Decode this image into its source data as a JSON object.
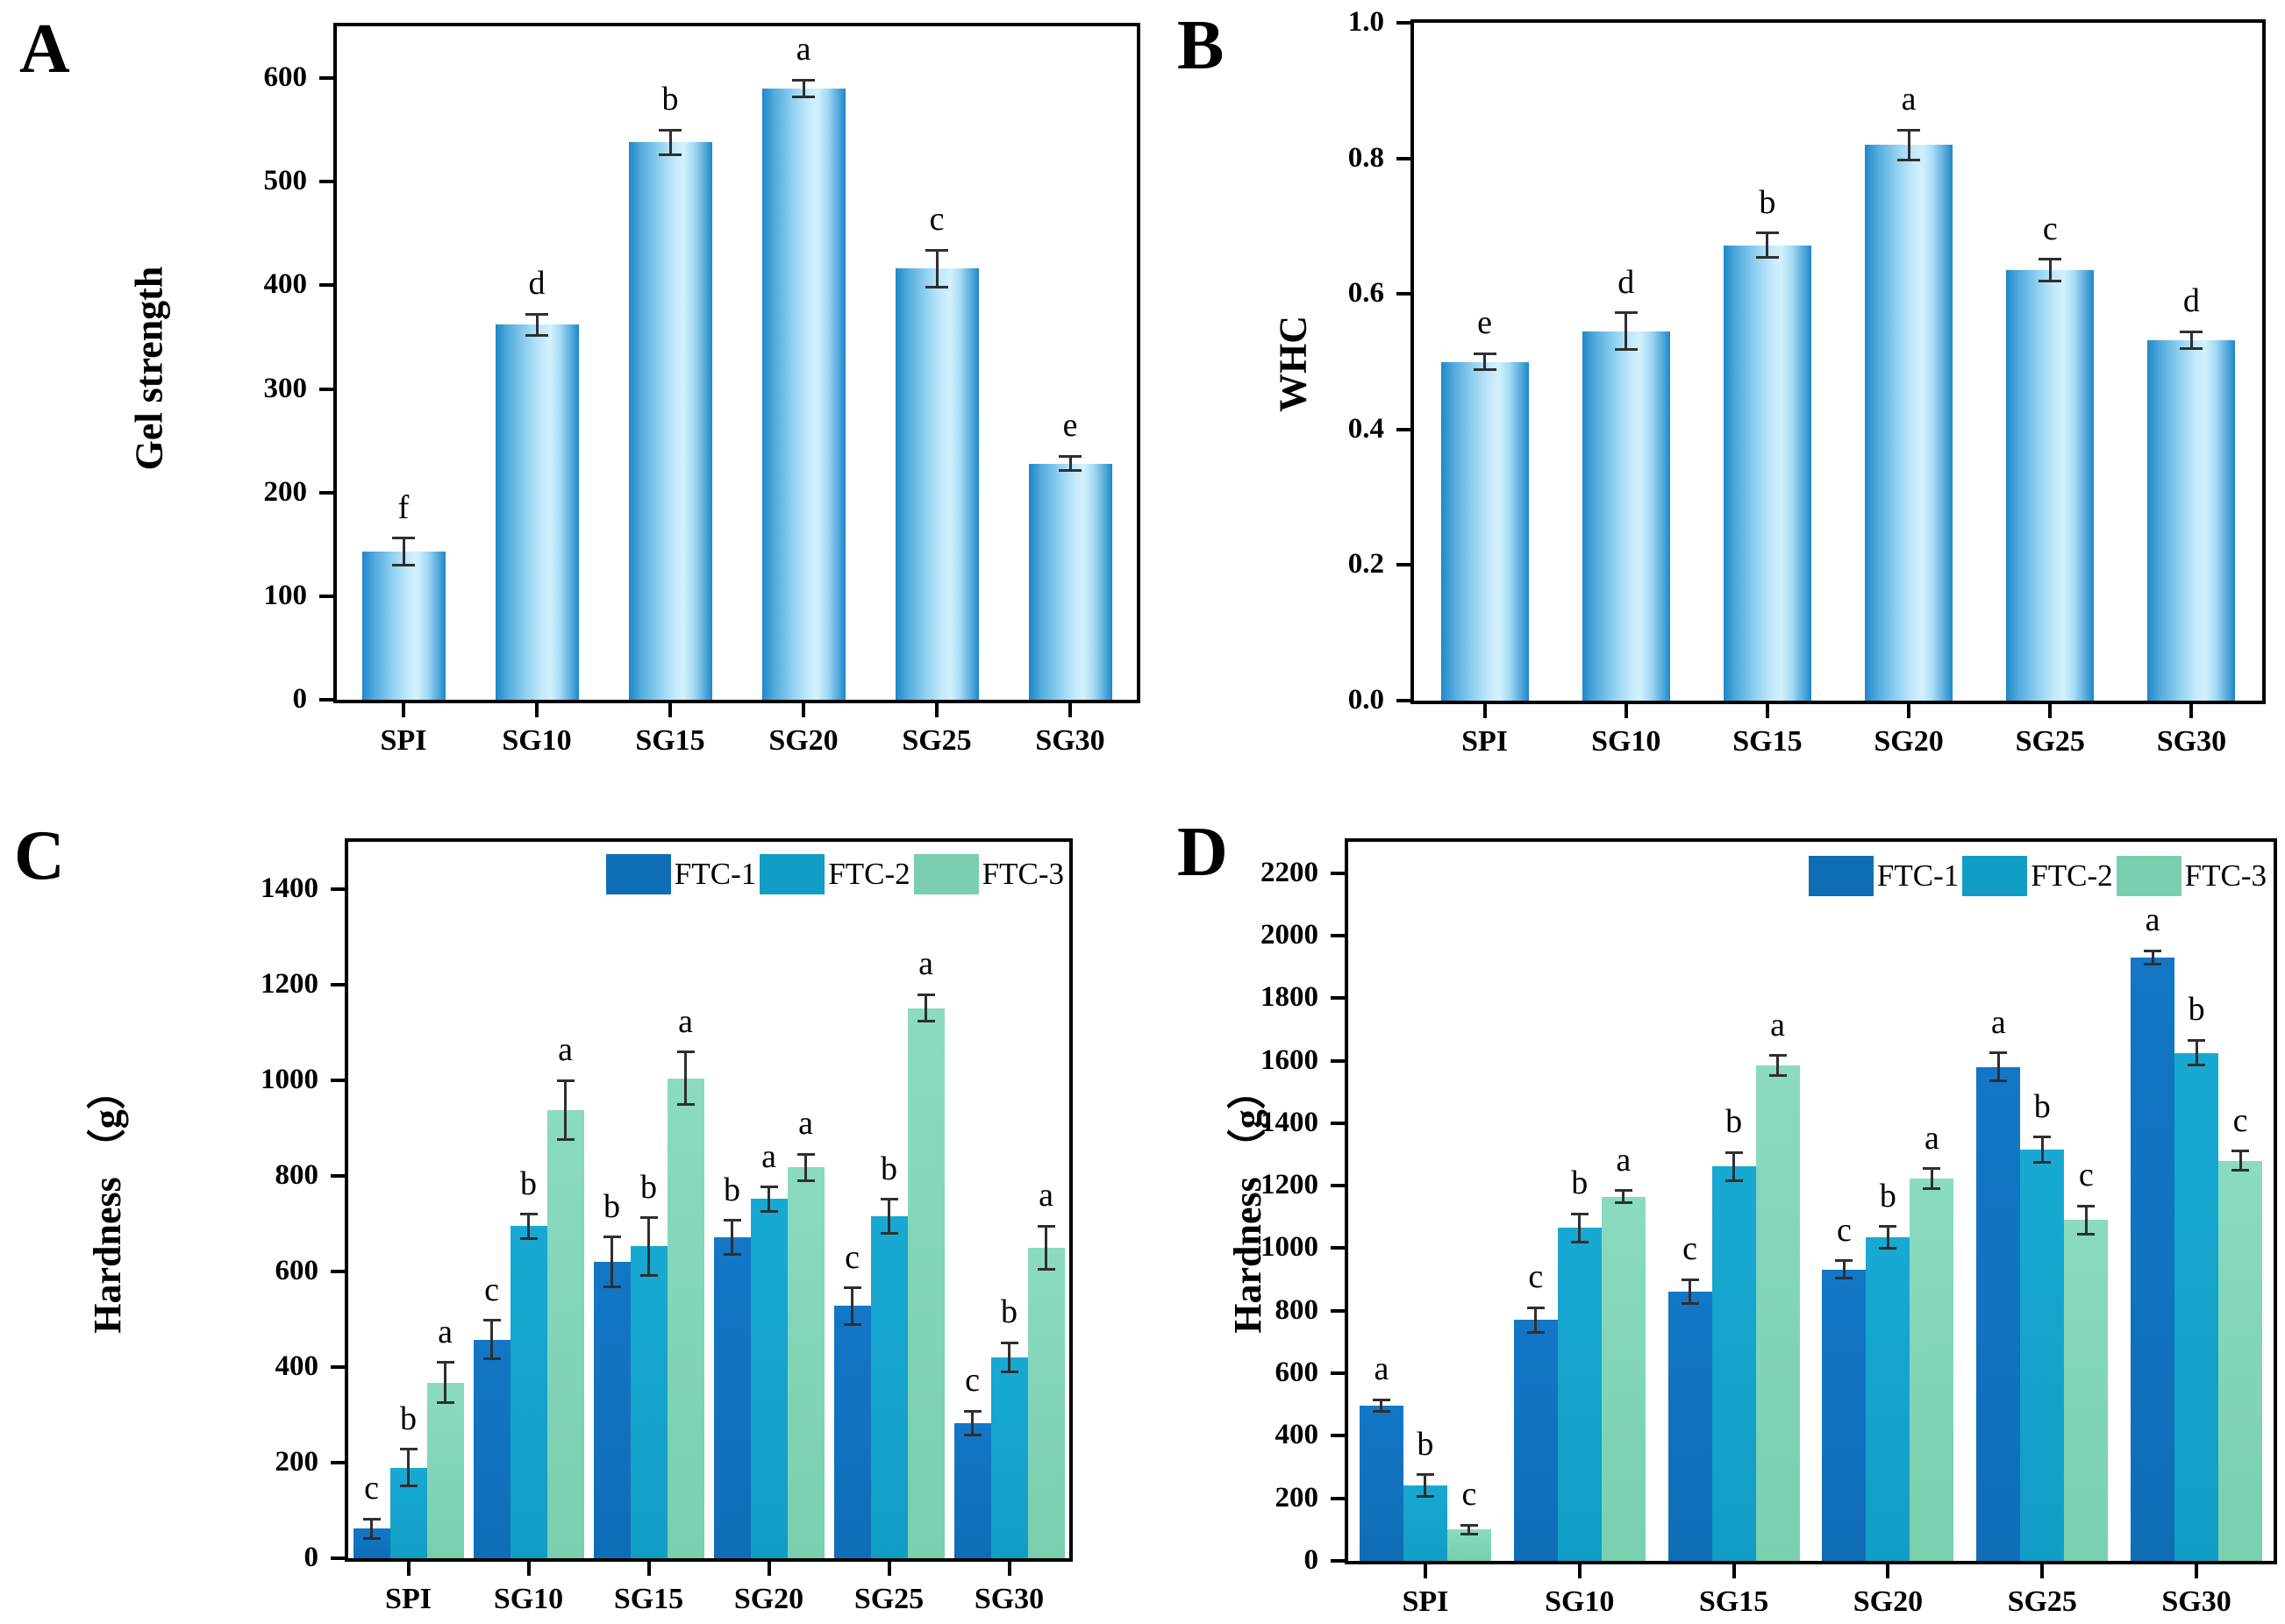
{
  "figure_background": "#ffffff",
  "frame_color": "#000000",
  "error_bar_color": "#2f2f2f",
  "palette": {
    "cylinder_bar_edge": "#1e88c9",
    "cylinder_bar_highlight": "#d2f1fd",
    "ftc1": "#0f6db6",
    "ftc2": "#129dc6",
    "ftc3": "#79cfae"
  },
  "chart_data": [
    {
      "type": "bar",
      "panel_label": "A",
      "title": "",
      "xlabel": "",
      "ylabel": "Gel strength",
      "grid": false,
      "legend_position": "none",
      "categories": [
        "SPI",
        "SG10",
        "SG15",
        "SG20",
        "SG25",
        "SG30"
      ],
      "values": [
        143,
        362,
        538,
        590,
        416,
        228
      ],
      "errors": [
        13,
        10,
        12,
        8,
        18,
        7
      ],
      "sig_letters": [
        "f",
        "d",
        "b",
        "a",
        "c",
        "e"
      ],
      "ylim": [
        0,
        650
      ],
      "yticks": [
        0,
        100,
        200,
        300,
        400,
        500,
        600
      ],
      "ytick_labels": [
        "0",
        "100",
        "200",
        "300",
        "400",
        "500",
        "600"
      ],
      "bar_fill": "cylinder-blue-gradient"
    },
    {
      "type": "bar",
      "panel_label": "B",
      "title": "",
      "xlabel": "",
      "ylabel": "WHC",
      "grid": false,
      "legend_position": "none",
      "categories": [
        "SPI",
        "SG10",
        "SG15",
        "SG20",
        "SG25",
        "SG30"
      ],
      "values": [
        0.5,
        0.545,
        0.672,
        0.82,
        0.635,
        0.532
      ],
      "errors": [
        0.012,
        0.027,
        0.018,
        0.022,
        0.016,
        0.012
      ],
      "sig_letters": [
        "e",
        "d",
        "b",
        "a",
        "c",
        "d"
      ],
      "ylim": [
        0,
        1.0
      ],
      "yticks": [
        0,
        0.2,
        0.4,
        0.6,
        0.8,
        1.0
      ],
      "ytick_labels": [
        "0.0",
        "0.2",
        "0.4",
        "0.6",
        "0.8",
        "1.0"
      ],
      "bar_fill": "cylinder-blue-gradient"
    },
    {
      "type": "bar",
      "panel_label": "C",
      "title": "",
      "xlabel": "",
      "ylabel": "Hardness （g）",
      "grid": false,
      "legend_position": "top-right",
      "legend": [
        "FTC-1",
        "FTC-2",
        "FTC-3"
      ],
      "categories": [
        "SPI",
        "SG10",
        "SG15",
        "SG20",
        "SG25",
        "SG30"
      ],
      "series": [
        {
          "name": "FTC-1",
          "color": "#0f6db6",
          "color_top": "#1377c6",
          "values": [
            62,
            458,
            620,
            672,
            528,
            283
          ],
          "errors": [
            20,
            40,
            52,
            35,
            38,
            25
          ],
          "sig_letters": [
            "c",
            "c",
            "b",
            "b",
            "c",
            "c"
          ]
        },
        {
          "name": "FTC-2",
          "color": "#129dc6",
          "color_top": "#18a9d2",
          "values": [
            190,
            695,
            653,
            752,
            716,
            421
          ],
          "errors": [
            38,
            25,
            60,
            25,
            35,
            30
          ],
          "sig_letters": [
            "b",
            "b",
            "b",
            "a",
            "b",
            "b"
          ]
        },
        {
          "name": "FTC-3",
          "color": "#79cfae",
          "color_top": "#8adbc0",
          "values": [
            368,
            938,
            1005,
            818,
            1152,
            650
          ],
          "errors": [
            42,
            62,
            55,
            28,
            28,
            45
          ],
          "sig_letters": [
            "a",
            "a",
            "a",
            "a",
            "a",
            "a"
          ]
        }
      ],
      "ylim": [
        0,
        1500
      ],
      "yticks": [
        0,
        200,
        400,
        600,
        800,
        1000,
        1200,
        1400
      ],
      "ytick_labels": [
        "0",
        "200",
        "400",
        "600",
        "800",
        "1000",
        "1200",
        "1400"
      ]
    },
    {
      "type": "bar",
      "panel_label": "D",
      "title": "",
      "xlabel": "",
      "ylabel": "Hardness （g）",
      "grid": false,
      "legend_position": "top-right",
      "legend": [
        "FTC-1",
        "FTC-2",
        "FTC-3"
      ],
      "categories": [
        "SPI",
        "SG10",
        "SG15",
        "SG20",
        "SG25",
        "SG30"
      ],
      "series": [
        {
          "name": "FTC-1",
          "color": "#0f6db6",
          "color_top": "#1377c6",
          "values": [
            497,
            770,
            862,
            932,
            1580,
            1930
          ],
          "errors": [
            18,
            40,
            38,
            28,
            45,
            22
          ],
          "sig_letters": [
            "a",
            "c",
            "c",
            "c",
            "a",
            "a"
          ]
        },
        {
          "name": "FTC-2",
          "color": "#129dc6",
          "color_top": "#18a9d2",
          "values": [
            240,
            1065,
            1262,
            1035,
            1315,
            1625
          ],
          "errors": [
            35,
            45,
            45,
            35,
            40,
            40
          ],
          "sig_letters": [
            "b",
            "b",
            "b",
            "b",
            "b",
            "b"
          ]
        },
        {
          "name": "FTC-3",
          "color": "#79cfae",
          "color_top": "#8adbc0",
          "values": [
            100,
            1165,
            1585,
            1222,
            1090,
            1280
          ],
          "errors": [
            15,
            20,
            32,
            32,
            45,
            30
          ],
          "sig_letters": [
            "c",
            "a",
            "a",
            "a",
            "c",
            "c"
          ]
        }
      ],
      "ylim": [
        0,
        2300
      ],
      "yticks": [
        0,
        200,
        400,
        600,
        800,
        1000,
        1200,
        1400,
        1600,
        1800,
        2000,
        2200
      ],
      "ytick_labels": [
        "0",
        "200",
        "400",
        "600",
        "800",
        "1000",
        "1200",
        "1400",
        "1600",
        "1800",
        "2000",
        "2200"
      ]
    }
  ]
}
